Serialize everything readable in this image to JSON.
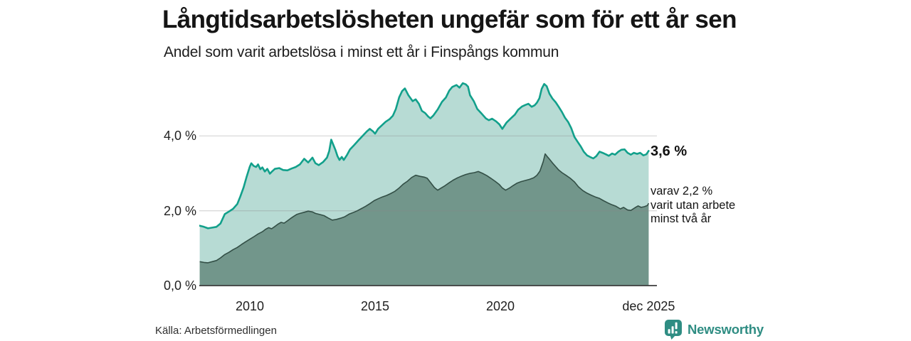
{
  "header": {
    "title": "Långtidsarbetslösheten ungefär som för ett år sen",
    "subtitle": "Andel som varit arbetslösa i minst ett år i Finspångs kommun"
  },
  "annotations": {
    "total_label": "3,6 %",
    "sub_lines": [
      "varav 2,2 %",
      "varit utan arbete",
      "minst två år"
    ]
  },
  "footer": {
    "source": "Källa: Arbetsförmedlingen",
    "brand": "Newsworthy"
  },
  "colors": {
    "accent_line": "#12a08b",
    "accent_fill": "#b7dbd4",
    "dark_fill": "#72968b",
    "dark_line": "#33504-7",
    "dark_line_fixed": "#334f46",
    "grid": "#8a8a8a",
    "axis": "#3c3c3c",
    "brand": "#2f8d83"
  },
  "chart_data": {
    "type": "area",
    "title": "Långtidsarbetslösheten ungefär som för ett år sen",
    "subtitle": "Andel som varit arbetslösa i minst ett år i Finspångs kommun",
    "unit": "%",
    "xlim": [
      2008.0,
      2025.92
    ],
    "ylim": [
      0,
      5.64
    ],
    "grid": "horizontal only, at 2.0 and 4.0",
    "legend_position": "end-of-line annotations at right",
    "y_ticks": [
      {
        "label": "4,0 %",
        "value": 4.0,
        "grid": true
      },
      {
        "label": "2,0 %",
        "value": 2.0,
        "grid": true
      },
      {
        "label": "0,0 %",
        "value": 0.0,
        "grid": false
      }
    ],
    "x_ticks": [
      {
        "label": "2010",
        "year": 2010
      },
      {
        "label": "2015",
        "year": 2015
      },
      {
        "label": "2020",
        "year": 2020
      },
      {
        "label": "dec 2025",
        "year": 2025.92
      }
    ],
    "series": [
      {
        "name": "Arbetslösa minst ett år (andel, %)",
        "end_value": 3.6,
        "points": [
          [
            2008.0,
            1.6
          ],
          [
            2008.17,
            1.57
          ],
          [
            2008.33,
            1.53
          ],
          [
            2008.5,
            1.55
          ],
          [
            2008.67,
            1.57
          ],
          [
            2008.83,
            1.66
          ],
          [
            2009.0,
            1.91
          ],
          [
            2009.17,
            1.98
          ],
          [
            2009.33,
            2.05
          ],
          [
            2009.5,
            2.18
          ],
          [
            2009.62,
            2.38
          ],
          [
            2009.75,
            2.62
          ],
          [
            2009.87,
            2.9
          ],
          [
            2010.0,
            3.18
          ],
          [
            2010.06,
            3.27
          ],
          [
            2010.15,
            3.2
          ],
          [
            2010.25,
            3.17
          ],
          [
            2010.33,
            3.24
          ],
          [
            2010.42,
            3.11
          ],
          [
            2010.5,
            3.16
          ],
          [
            2010.6,
            3.05
          ],
          [
            2010.7,
            3.12
          ],
          [
            2010.8,
            2.99
          ],
          [
            2010.9,
            3.06
          ],
          [
            2011.0,
            3.12
          ],
          [
            2011.17,
            3.14
          ],
          [
            2011.33,
            3.09
          ],
          [
            2011.5,
            3.08
          ],
          [
            2011.67,
            3.13
          ],
          [
            2011.83,
            3.17
          ],
          [
            2012.0,
            3.24
          ],
          [
            2012.17,
            3.39
          ],
          [
            2012.33,
            3.29
          ],
          [
            2012.5,
            3.42
          ],
          [
            2012.62,
            3.27
          ],
          [
            2012.75,
            3.22
          ],
          [
            2012.92,
            3.3
          ],
          [
            2013.08,
            3.42
          ],
          [
            2013.17,
            3.6
          ],
          [
            2013.25,
            3.9
          ],
          [
            2013.33,
            3.77
          ],
          [
            2013.42,
            3.62
          ],
          [
            2013.5,
            3.46
          ],
          [
            2013.58,
            3.36
          ],
          [
            2013.67,
            3.44
          ],
          [
            2013.75,
            3.36
          ],
          [
            2013.87,
            3.48
          ],
          [
            2014.0,
            3.64
          ],
          [
            2014.17,
            3.76
          ],
          [
            2014.33,
            3.88
          ],
          [
            2014.5,
            4.0
          ],
          [
            2014.67,
            4.12
          ],
          [
            2014.79,
            4.19
          ],
          [
            2014.92,
            4.12
          ],
          [
            2015.0,
            4.06
          ],
          [
            2015.12,
            4.19
          ],
          [
            2015.25,
            4.27
          ],
          [
            2015.42,
            4.38
          ],
          [
            2015.58,
            4.45
          ],
          [
            2015.71,
            4.54
          ],
          [
            2015.83,
            4.72
          ],
          [
            2015.96,
            5.03
          ],
          [
            2016.08,
            5.2
          ],
          [
            2016.19,
            5.27
          ],
          [
            2016.33,
            5.09
          ],
          [
            2016.5,
            4.93
          ],
          [
            2016.62,
            4.98
          ],
          [
            2016.75,
            4.86
          ],
          [
            2016.87,
            4.67
          ],
          [
            2017.0,
            4.61
          ],
          [
            2017.12,
            4.52
          ],
          [
            2017.21,
            4.47
          ],
          [
            2017.33,
            4.55
          ],
          [
            2017.5,
            4.71
          ],
          [
            2017.67,
            4.91
          ],
          [
            2017.83,
            5.03
          ],
          [
            2017.96,
            5.21
          ],
          [
            2018.08,
            5.31
          ],
          [
            2018.25,
            5.36
          ],
          [
            2018.37,
            5.29
          ],
          [
            2018.5,
            5.41
          ],
          [
            2018.62,
            5.38
          ],
          [
            2018.71,
            5.32
          ],
          [
            2018.79,
            5.09
          ],
          [
            2018.94,
            4.93
          ],
          [
            2019.08,
            4.72
          ],
          [
            2019.25,
            4.6
          ],
          [
            2019.42,
            4.47
          ],
          [
            2019.54,
            4.42
          ],
          [
            2019.67,
            4.46
          ],
          [
            2019.83,
            4.39
          ],
          [
            2019.96,
            4.31
          ],
          [
            2020.08,
            4.19
          ],
          [
            2020.25,
            4.36
          ],
          [
            2020.42,
            4.47
          ],
          [
            2020.58,
            4.57
          ],
          [
            2020.71,
            4.7
          ],
          [
            2020.87,
            4.79
          ],
          [
            2021.0,
            4.83
          ],
          [
            2021.12,
            4.86
          ],
          [
            2021.25,
            4.78
          ],
          [
            2021.37,
            4.82
          ],
          [
            2021.46,
            4.89
          ],
          [
            2021.56,
            5.01
          ],
          [
            2021.65,
            5.26
          ],
          [
            2021.75,
            5.39
          ],
          [
            2021.85,
            5.33
          ],
          [
            2021.96,
            5.13
          ],
          [
            2022.08,
            5.0
          ],
          [
            2022.21,
            4.9
          ],
          [
            2022.33,
            4.78
          ],
          [
            2022.46,
            4.64
          ],
          [
            2022.58,
            4.49
          ],
          [
            2022.71,
            4.37
          ],
          [
            2022.83,
            4.21
          ],
          [
            2022.96,
            3.97
          ],
          [
            2023.08,
            3.85
          ],
          [
            2023.21,
            3.72
          ],
          [
            2023.33,
            3.58
          ],
          [
            2023.46,
            3.48
          ],
          [
            2023.58,
            3.44
          ],
          [
            2023.71,
            3.4
          ],
          [
            2023.83,
            3.46
          ],
          [
            2023.96,
            3.58
          ],
          [
            2024.08,
            3.55
          ],
          [
            2024.21,
            3.51
          ],
          [
            2024.33,
            3.47
          ],
          [
            2024.46,
            3.53
          ],
          [
            2024.58,
            3.5
          ],
          [
            2024.71,
            3.58
          ],
          [
            2024.83,
            3.63
          ],
          [
            2024.96,
            3.64
          ],
          [
            2025.08,
            3.55
          ],
          [
            2025.21,
            3.5
          ],
          [
            2025.33,
            3.55
          ],
          [
            2025.46,
            3.52
          ],
          [
            2025.58,
            3.55
          ],
          [
            2025.71,
            3.48
          ],
          [
            2025.83,
            3.51
          ],
          [
            2025.92,
            3.6
          ]
        ]
      },
      {
        "name": "varav utan arbete minst två år (andel, %)",
        "end_value": 2.2,
        "points": [
          [
            2008.0,
            0.64
          ],
          [
            2008.17,
            0.62
          ],
          [
            2008.33,
            0.61
          ],
          [
            2008.5,
            0.64
          ],
          [
            2008.67,
            0.67
          ],
          [
            2008.83,
            0.74
          ],
          [
            2009.0,
            0.83
          ],
          [
            2009.17,
            0.89
          ],
          [
            2009.33,
            0.96
          ],
          [
            2009.5,
            1.02
          ],
          [
            2009.67,
            1.1
          ],
          [
            2009.83,
            1.17
          ],
          [
            2010.0,
            1.24
          ],
          [
            2010.17,
            1.31
          ],
          [
            2010.33,
            1.38
          ],
          [
            2010.5,
            1.44
          ],
          [
            2010.62,
            1.5
          ],
          [
            2010.75,
            1.55
          ],
          [
            2010.87,
            1.52
          ],
          [
            2011.0,
            1.58
          ],
          [
            2011.12,
            1.64
          ],
          [
            2011.25,
            1.69
          ],
          [
            2011.37,
            1.67
          ],
          [
            2011.5,
            1.73
          ],
          [
            2011.62,
            1.79
          ],
          [
            2011.75,
            1.85
          ],
          [
            2011.87,
            1.9
          ],
          [
            2012.0,
            1.93
          ],
          [
            2012.17,
            1.96
          ],
          [
            2012.33,
            1.99
          ],
          [
            2012.5,
            1.97
          ],
          [
            2012.62,
            1.93
          ],
          [
            2012.79,
            1.9
          ],
          [
            2012.96,
            1.87
          ],
          [
            2013.12,
            1.81
          ],
          [
            2013.29,
            1.75
          ],
          [
            2013.46,
            1.77
          ],
          [
            2013.62,
            1.8
          ],
          [
            2013.79,
            1.84
          ],
          [
            2013.96,
            1.91
          ],
          [
            2014.12,
            1.95
          ],
          [
            2014.29,
            2.0
          ],
          [
            2014.46,
            2.06
          ],
          [
            2014.62,
            2.12
          ],
          [
            2014.79,
            2.19
          ],
          [
            2014.96,
            2.27
          ],
          [
            2015.12,
            2.32
          ],
          [
            2015.29,
            2.37
          ],
          [
            2015.46,
            2.41
          ],
          [
            2015.62,
            2.46
          ],
          [
            2015.79,
            2.52
          ],
          [
            2015.96,
            2.61
          ],
          [
            2016.12,
            2.71
          ],
          [
            2016.29,
            2.79
          ],
          [
            2016.46,
            2.89
          ],
          [
            2016.62,
            2.95
          ],
          [
            2016.79,
            2.92
          ],
          [
            2016.96,
            2.9
          ],
          [
            2017.08,
            2.87
          ],
          [
            2017.21,
            2.76
          ],
          [
            2017.37,
            2.62
          ],
          [
            2017.5,
            2.55
          ],
          [
            2017.62,
            2.6
          ],
          [
            2017.79,
            2.67
          ],
          [
            2017.96,
            2.75
          ],
          [
            2018.12,
            2.82
          ],
          [
            2018.29,
            2.88
          ],
          [
            2018.46,
            2.93
          ],
          [
            2018.62,
            2.97
          ],
          [
            2018.79,
            3.0
          ],
          [
            2018.96,
            3.02
          ],
          [
            2019.12,
            3.05
          ],
          [
            2019.29,
            3.0
          ],
          [
            2019.46,
            2.94
          ],
          [
            2019.62,
            2.87
          ],
          [
            2019.79,
            2.79
          ],
          [
            2019.96,
            2.7
          ],
          [
            2020.08,
            2.61
          ],
          [
            2020.21,
            2.55
          ],
          [
            2020.37,
            2.61
          ],
          [
            2020.5,
            2.67
          ],
          [
            2020.67,
            2.74
          ],
          [
            2020.83,
            2.78
          ],
          [
            2021.0,
            2.81
          ],
          [
            2021.17,
            2.84
          ],
          [
            2021.33,
            2.88
          ],
          [
            2021.46,
            2.95
          ],
          [
            2021.58,
            3.06
          ],
          [
            2021.71,
            3.31
          ],
          [
            2021.79,
            3.52
          ],
          [
            2021.87,
            3.45
          ],
          [
            2021.96,
            3.38
          ],
          [
            2022.08,
            3.28
          ],
          [
            2022.21,
            3.18
          ],
          [
            2022.33,
            3.09
          ],
          [
            2022.46,
            3.02
          ],
          [
            2022.62,
            2.95
          ],
          [
            2022.79,
            2.87
          ],
          [
            2022.96,
            2.77
          ],
          [
            2023.12,
            2.64
          ],
          [
            2023.29,
            2.54
          ],
          [
            2023.46,
            2.47
          ],
          [
            2023.62,
            2.42
          ],
          [
            2023.79,
            2.37
          ],
          [
            2023.96,
            2.33
          ],
          [
            2024.12,
            2.27
          ],
          [
            2024.29,
            2.21
          ],
          [
            2024.46,
            2.16
          ],
          [
            2024.62,
            2.12
          ],
          [
            2024.79,
            2.05
          ],
          [
            2024.92,
            2.09
          ],
          [
            2025.08,
            2.02
          ],
          [
            2025.21,
            2.01
          ],
          [
            2025.37,
            2.08
          ],
          [
            2025.5,
            2.13
          ],
          [
            2025.62,
            2.09
          ],
          [
            2025.75,
            2.11
          ],
          [
            2025.87,
            2.14
          ],
          [
            2025.92,
            2.2
          ]
        ]
      }
    ]
  }
}
